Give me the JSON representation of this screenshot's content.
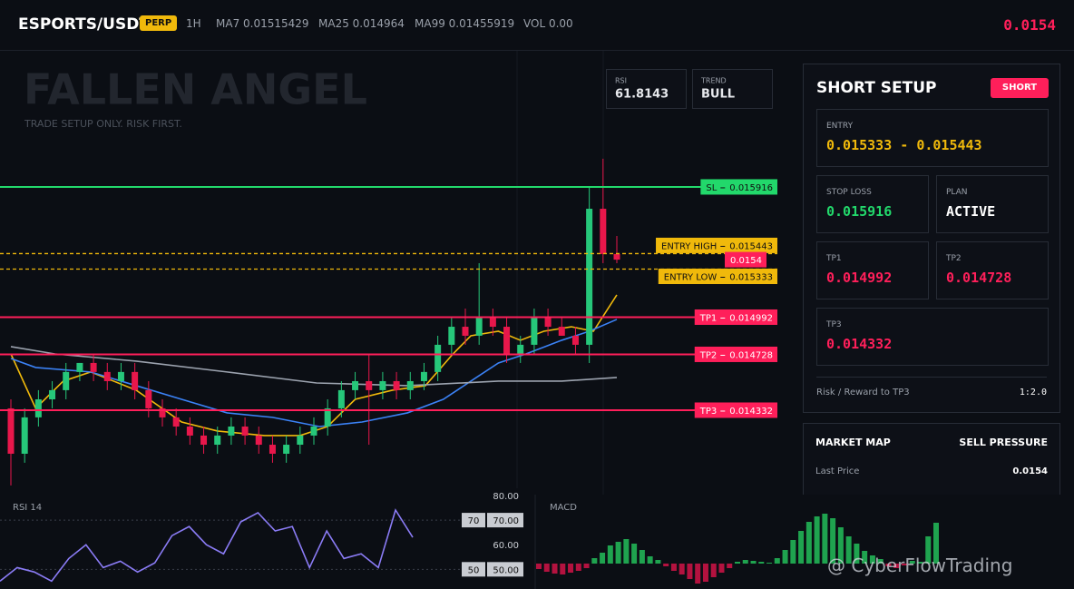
{
  "header": {
    "symbol": "ESPORTS/USDT",
    "badge": "PERP",
    "interval": "1H",
    "ma7": "MA7 0.01515429",
    "ma25": "MA25 0.014964",
    "ma99": "MA99 0.01455919",
    "vol": "VOL 0.00",
    "price": 0.0154
  },
  "watermark": {
    "title": "FALLEN ANGEL",
    "subtitle": "TRADE SETUP ONLY. RISK FIRST."
  },
  "stats": [
    {
      "label": "RSI",
      "value": 61.8143
    },
    {
      "label": "TREND",
      "value": "BULL"
    }
  ],
  "chart_data": [
    {
      "type": "candlestick",
      "colors": {
        "up": "#26c77a",
        "down": "#e8174b"
      },
      "ylim": [
        0.013733,
        0.016888
      ],
      "open": [
        0.014345,
        0.014023,
        0.014281,
        0.014409,
        0.014474,
        0.014603,
        0.014667,
        0.014603,
        0.014538,
        0.014603,
        0.014474,
        0.014345,
        0.014281,
        0.014216,
        0.014152,
        0.014087,
        0.014152,
        0.014216,
        0.014152,
        0.014087,
        0.014023,
        0.014087,
        0.014152,
        0.014216,
        0.014345,
        0.014474,
        0.014538,
        0.014474,
        0.014538,
        0.014474,
        0.014538,
        0.014603,
        0.014796,
        0.014924,
        0.01486,
        0.014989,
        0.014924,
        0.014731,
        0.014796,
        0.014989,
        0.014924,
        0.01486,
        0.014796,
        0.015761,
        0.01544
      ],
      "high": [
        0.014409,
        0.014345,
        0.014474,
        0.014538,
        0.014667,
        0.014667,
        0.014731,
        0.014667,
        0.014667,
        0.014667,
        0.014538,
        0.014409,
        0.014345,
        0.014281,
        0.014216,
        0.014216,
        0.014281,
        0.014281,
        0.014216,
        0.014152,
        0.014152,
        0.014216,
        0.014281,
        0.014409,
        0.014538,
        0.014603,
        0.014731,
        0.014603,
        0.014603,
        0.014603,
        0.014667,
        0.01486,
        0.014989,
        0.015053,
        0.015375,
        0.015053,
        0.014989,
        0.01486,
        0.015053,
        0.015053,
        0.014989,
        0.014924,
        0.015916,
        0.016116,
        0.015568
      ],
      "low": [
        0.013798,
        0.013959,
        0.014216,
        0.014345,
        0.014409,
        0.014538,
        0.014538,
        0.014474,
        0.014474,
        0.014409,
        0.014281,
        0.014216,
        0.014152,
        0.014087,
        0.014023,
        0.014023,
        0.014087,
        0.014087,
        0.014023,
        0.013959,
        0.013959,
        0.014023,
        0.014087,
        0.014152,
        0.014281,
        0.014409,
        0.014087,
        0.014409,
        0.014409,
        0.014409,
        0.014474,
        0.014538,
        0.014731,
        0.014796,
        0.014796,
        0.01486,
        0.014667,
        0.014667,
        0.014731,
        0.01486,
        0.01486,
        0.014731,
        0.014667,
        0.015375,
        0.015375
      ],
      "close": [
        0.014023,
        0.014281,
        0.014409,
        0.014474,
        0.014603,
        0.014667,
        0.014603,
        0.014538,
        0.014603,
        0.014474,
        0.014345,
        0.014281,
        0.014216,
        0.014152,
        0.014087,
        0.014152,
        0.014216,
        0.014152,
        0.014087,
        0.014023,
        0.014087,
        0.014152,
        0.014216,
        0.014345,
        0.014474,
        0.014538,
        0.014474,
        0.014538,
        0.014474,
        0.014538,
        0.014603,
        0.014796,
        0.014924,
        0.01486,
        0.014989,
        0.014924,
        0.014731,
        0.014796,
        0.014989,
        0.014924,
        0.01486,
        0.014796,
        0.015761,
        0.01544,
        0.0154
      ],
      "series": [
        {
          "color": "#f0b90b",
          "x": [
            0,
            1.8,
            3.8,
            5.8,
            9.1,
            12.4,
            15,
            18.4,
            21,
            23,
            25,
            27.7,
            30.1,
            32.1,
            33.4,
            35.4,
            37,
            38.7,
            40.7,
            42.3,
            44
          ],
          "values": [
            0.014731,
            0.014345,
            0.014538,
            0.014603,
            0.014474,
            0.014248,
            0.014184,
            0.014152,
            0.014152,
            0.014216,
            0.014409,
            0.014474,
            0.014506,
            0.014731,
            0.01486,
            0.014892,
            0.014828,
            0.014892,
            0.014924,
            0.014892,
            0.01515
          ]
        },
        {
          "color": "#3b82f6",
          "x": [
            0,
            1.8,
            5.8,
            9.1,
            12.4,
            15.7,
            19,
            22.4,
            25.5,
            28.8,
            31.4,
            33.4,
            35.4,
            37.4,
            40,
            42,
            44
          ],
          "values": [
            0.014699,
            0.014635,
            0.014603,
            0.014506,
            0.014409,
            0.014313,
            0.014281,
            0.014216,
            0.014248,
            0.014313,
            0.014409,
            0.014538,
            0.014667,
            0.014731,
            0.014828,
            0.014892,
            0.014976
          ]
        },
        {
          "color": "#9ca3af",
          "x": [
            0,
            3.2,
            9.1,
            15.7,
            22.2,
            28.8,
            35.4,
            40,
            44
          ],
          "values": [
            0.014783,
            0.014731,
            0.01468,
            0.014603,
            0.014525,
            0.014506,
            0.014538,
            0.014538,
            0.014564
          ]
        }
      ],
      "levels": [
        {
          "label": "SL",
          "value": 0.015916,
          "color": "#22d86b",
          "line": "solid"
        },
        {
          "label": "ENTRY HIGH",
          "value": 0.015443,
          "color": "#f0b90b",
          "line": "dashed"
        },
        {
          "value": 0.0154,
          "color": "#ff1f5a",
          "line": "none"
        },
        {
          "label": "ENTRY LOW",
          "value": 0.015333,
          "color": "#f0b90b",
          "line": "dashed"
        },
        {
          "label": "TP1",
          "value": 0.014992,
          "color": "#ff1f5a",
          "line": "solid"
        },
        {
          "label": "TP2",
          "value": 0.014728,
          "color": "#ff1f5a",
          "line": "solid"
        },
        {
          "label": "TP3",
          "value": 0.014332,
          "color": "#ff1f5a",
          "line": "solid"
        }
      ]
    },
    {
      "type": "line",
      "title": "RSI 14",
      "color": "#8b7cf6",
      "ylim": [
        42,
        80
      ],
      "values": [
        45.2,
        50.7,
        48.9,
        45.2,
        54.4,
        60,
        50.7,
        53.3,
        48.9,
        52.6,
        63.7,
        67.4,
        60,
        56.3,
        69.3,
        73,
        65.6,
        67.4,
        50.7,
        65.6,
        54.4,
        56.3,
        50.7,
        74.1,
        63
      ],
      "yticks": [
        {
          "value": 80,
          "label": "80.00"
        },
        {
          "value": 70,
          "label": "70.00"
        },
        {
          "value": 60,
          "label": "60.00"
        },
        {
          "value": 50,
          "label": "50.00"
        }
      ],
      "marked_levels": [
        70,
        50
      ]
    },
    {
      "type": "bar",
      "title": "MACD",
      "colors": {
        "up": "#1fa34f",
        "down": "#b3123f"
      },
      "ylim": [
        -28,
        76
      ],
      "values": [
        -6,
        -9,
        -11,
        -12,
        -10,
        -8,
        -5,
        6,
        12,
        20,
        24,
        27,
        22,
        15,
        8,
        4,
        -3,
        -8,
        -12,
        -17,
        -22,
        -20,
        -15,
        -10,
        -5,
        2,
        4,
        3,
        2,
        1,
        6,
        15,
        26,
        36,
        46,
        52,
        55,
        50,
        40,
        30,
        22,
        14,
        9,
        5,
        -3,
        -5,
        -2,
        3,
        2,
        30,
        45
      ]
    }
  ],
  "panel": {
    "title": "SHORT SETUP",
    "badge": "SHORT",
    "entry": {
      "label": "ENTRY",
      "value": "0.015333 - 0.015443"
    },
    "stop_loss": {
      "label": "STOP LOSS",
      "value": 0.015916
    },
    "plan": {
      "label": "PLAN",
      "value": "ACTIVE"
    },
    "tp1": {
      "label": "TP1",
      "value": 0.014992
    },
    "tp2": {
      "label": "TP2",
      "value": 0.014728
    },
    "tp3": {
      "label": "TP3",
      "value": 0.014332
    },
    "risk_reward": {
      "label": "Risk / Reward to TP3",
      "value": "1:2.0"
    },
    "market_map": {
      "title": "MARKET MAP",
      "status": "SELL PRESSURE",
      "last_price_label": "Last Price",
      "last_price": 0.0154
    }
  },
  "footer_watermark": "@ CyberFlowTrading"
}
